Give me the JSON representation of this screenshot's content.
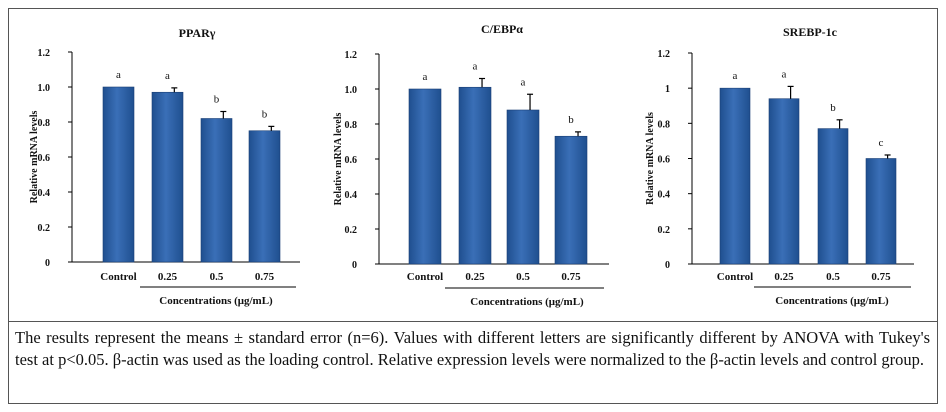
{
  "chart_data": [
    {
      "type": "bar",
      "title": "PPARγ",
      "categories": [
        "Control",
        "0.25",
        "0.5",
        "0.75"
      ],
      "values": [
        1.0,
        0.97,
        0.82,
        0.75
      ],
      "errors": [
        0.0,
        0.025,
        0.04,
        0.025
      ],
      "letters": [
        "a",
        "a",
        "b",
        "b"
      ],
      "ylabel": "Relative mRNA levels",
      "xlabel": "Concentrations (μg/mL)",
      "ylim": [
        0,
        1.2
      ],
      "yticks": [
        "0",
        "0.2",
        "0.4",
        "0.6",
        "0.8",
        "1.0",
        "1.2"
      ]
    },
    {
      "type": "bar",
      "title": "C/EBPα",
      "categories": [
        "Control",
        "0.25",
        "0.5",
        "0.75"
      ],
      "values": [
        1.0,
        1.01,
        0.88,
        0.73
      ],
      "errors": [
        0.0,
        0.05,
        0.09,
        0.025
      ],
      "letters": [
        "a",
        "a",
        "a",
        "b"
      ],
      "ylabel": "Relative mRNA levels",
      "xlabel": "Concentrations (μg/mL)",
      "ylim": [
        0,
        1.2
      ],
      "yticks": [
        "0",
        "0.2",
        "0.4",
        "0.6",
        "0.8",
        "1.0",
        "1.2"
      ]
    },
    {
      "type": "bar",
      "title": "SREBP-1c",
      "categories": [
        "Control",
        "0.25",
        "0.5",
        "0.75"
      ],
      "values": [
        1.0,
        0.94,
        0.77,
        0.6
      ],
      "errors": [
        0.0,
        0.07,
        0.05,
        0.02
      ],
      "letters": [
        "a",
        "a",
        "b",
        "c"
      ],
      "ylabel": "Relative mRNA levels",
      "xlabel": "Concentrations (μg/mL)",
      "ylim": [
        0,
        1.2
      ],
      "yticks": [
        "0",
        "0.2",
        "0.4",
        "0.6",
        "0.8",
        "1",
        "1.2"
      ]
    }
  ],
  "caption": "The results represent the means ± standard error (n=6). Values with different letters are significantly different by ANOVA with Tukey's test at p<0.05. β-actin was used as the loading control. Relative expression levels were normalized to the β-actin levels and control group.",
  "colors": {
    "bar": "#3a6fb7",
    "bar_dark": "#1f4f8f",
    "axis": "#000000"
  }
}
